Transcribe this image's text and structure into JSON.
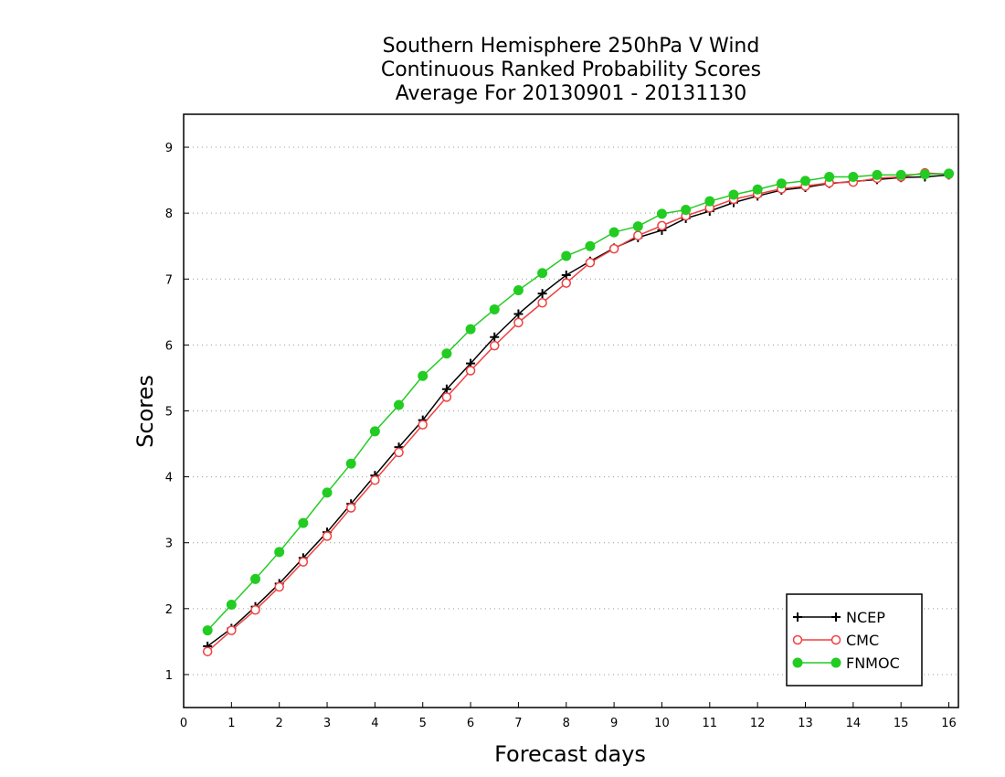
{
  "chart_data": {
    "type": "line",
    "title_lines": [
      "Southern Hemisphere 250hPa V Wind",
      "Continuous Ranked Probability Scores",
      "Average For 20130901 - 20131130"
    ],
    "xlabel": "Forecast days",
    "ylabel": "Scores",
    "xlim": [
      0,
      16.2
    ],
    "ylim": [
      0.5,
      9.5
    ],
    "xticks": [
      "0",
      "1",
      "2",
      "3",
      "4",
      "5",
      "6",
      "7",
      "8",
      "9",
      "10",
      "11",
      "12",
      "13",
      "14",
      "15",
      "16"
    ],
    "yticks": [
      "1",
      "2",
      "3",
      "4",
      "5",
      "6",
      "7",
      "8",
      "9"
    ],
    "grid": "horizontal-dotted",
    "legend_position": "bottom-right",
    "x": [
      0.5,
      1,
      1.5,
      2,
      2.5,
      3,
      3.5,
      4,
      4.5,
      5,
      5.5,
      6,
      6.5,
      7,
      7.5,
      8,
      8.5,
      9,
      9.5,
      10,
      10.5,
      11,
      11.5,
      12,
      12.5,
      13,
      13.5,
      14,
      14.5,
      15,
      15.5,
      16
    ],
    "series": [
      {
        "name": "NCEP",
        "color": "#000000",
        "marker": "plus",
        "values": [
          1.43,
          1.7,
          2.03,
          2.38,
          2.77,
          3.16,
          3.59,
          4.02,
          4.45,
          4.86,
          5.33,
          5.72,
          6.12,
          6.47,
          6.78,
          7.06,
          7.27,
          7.47,
          7.63,
          7.74,
          7.92,
          8.03,
          8.16,
          8.26,
          8.35,
          8.39,
          8.45,
          8.48,
          8.51,
          8.54,
          8.55,
          8.58
        ]
      },
      {
        "name": "CMC",
        "color": "#f04040",
        "marker": "open-circle",
        "values": [
          1.35,
          1.67,
          1.98,
          2.33,
          2.71,
          3.1,
          3.53,
          3.95,
          4.37,
          4.79,
          5.21,
          5.61,
          5.99,
          6.34,
          6.64,
          6.94,
          7.25,
          7.46,
          7.66,
          7.81,
          7.96,
          8.08,
          8.21,
          8.29,
          8.37,
          8.41,
          8.46,
          8.47,
          8.53,
          8.55,
          8.61,
          8.59
        ]
      },
      {
        "name": "FNMOC",
        "color": "#22cc22",
        "marker": "filled-circle",
        "values": [
          1.67,
          2.06,
          2.45,
          2.86,
          3.3,
          3.76,
          4.2,
          4.69,
          5.09,
          5.53,
          5.87,
          6.24,
          6.54,
          6.83,
          7.09,
          7.35,
          7.5,
          7.71,
          7.8,
          7.99,
          8.05,
          8.18,
          8.28,
          8.36,
          8.45,
          8.49,
          8.55,
          8.55,
          8.58,
          8.58,
          8.59,
          8.6
        ]
      }
    ]
  }
}
